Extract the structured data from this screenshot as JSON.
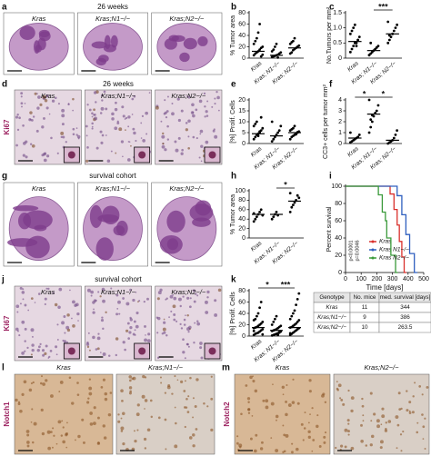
{
  "panels": [
    {
      "label": "a",
      "title": "26 weeks",
      "samples": [
        "Kras",
        "Kras;N1−/−",
        "Kras;N2−/−"
      ]
    },
    {
      "label": "d",
      "title": "26 weeks",
      "stain": "Ki67",
      "samples": [
        "Kras",
        "Kras;N1−/−",
        "Kras;N2−/−"
      ]
    },
    {
      "label": "g",
      "title": "survival cohort",
      "samples": [
        "Kras",
        "Kras;N1−/−",
        "Kras;N2−/−"
      ]
    },
    {
      "label": "j",
      "title": "survival cohort",
      "stain": "Ki67",
      "samples": [
        "Kras",
        "Kras;N1−/−",
        "Kras;N2−/−"
      ]
    },
    {
      "label": "l",
      "stain": "Notch1",
      "samples": [
        "Kras",
        "Kras;N1−/−"
      ]
    },
    {
      "label": "m",
      "stain": "Notch2",
      "samples": [
        "Kras",
        "Kras;N2−/−"
      ]
    }
  ],
  "chart_data": [
    {
      "type": "dotplot",
      "label": "b",
      "ylabel": "% Tumor area",
      "categories": [
        "Kras",
        "Kras; N1−/−",
        "Kras; N2−/−"
      ],
      "values": [
        [
          5,
          8,
          10,
          12,
          15,
          18,
          20,
          25,
          30,
          35,
          45,
          60,
          3,
          6
        ],
        [
          2,
          3,
          4,
          5,
          6,
          8,
          10,
          12,
          15,
          20,
          25,
          1
        ],
        [
          8,
          10,
          14,
          16,
          18,
          20,
          22,
          25,
          28,
          30,
          35
        ]
      ],
      "medians": [
        12,
        5,
        18
      ],
      "ylim": [
        0,
        80
      ],
      "yticks": [
        0,
        20,
        40,
        60,
        80
      ]
    },
    {
      "type": "dotplot",
      "label": "c",
      "ylabel": "No.Tumors per mm²",
      "categories": [
        "Kras",
        "Kras; N1−/−",
        "Kras; N2−/−"
      ],
      "values": [
        [
          0.2,
          0.3,
          0.4,
          0.5,
          0.5,
          0.6,
          0.7,
          0.8,
          0.9,
          1.0,
          1.1,
          0.4,
          0.6
        ],
        [
          0.1,
          0.15,
          0.2,
          0.25,
          0.3,
          0.35,
          0.4,
          0.1,
          0.5
        ],
        [
          0.5,
          0.6,
          0.7,
          0.8,
          0.9,
          1.0,
          1.1,
          1.2,
          0.75
        ]
      ],
      "medians": [
        0.55,
        0.25,
        0.8
      ],
      "ylim": [
        0,
        1.5
      ],
      "yticks": [
        0,
        0.5,
        {
          "value": 1,
          "label": "1.0"
        },
        1.5
      ],
      "annotations": [
        "***"
      ]
    },
    {
      "type": "dotplot",
      "label": "e",
      "ylabel": "[%] Prolif. Cells",
      "categories": [
        "Kras",
        "Kras; N1−/−",
        "Kras; N2−/−"
      ],
      "values": [
        [
          2,
          3,
          4,
          4.5,
          5,
          6,
          7,
          8,
          9,
          10,
          3.5,
          5.5,
          12
        ],
        [
          1,
          2,
          3,
          4,
          5,
          6,
          8,
          10
        ],
        [
          2,
          3,
          3.5,
          4,
          4.5,
          5,
          5.5,
          6,
          6.5,
          7,
          8,
          4.2,
          5.2
        ]
      ],
      "medians": [
        4.5,
        3.5,
        5
      ],
      "ylim": [
        0,
        20
      ],
      "yticks": [
        0,
        5,
        10,
        15,
        20
      ]
    },
    {
      "type": "dotplot",
      "label": "f",
      "ylabel": "CC3+ cells per tumor mm²",
      "categories": [
        "Kras",
        "Kras; N1−/−",
        "Kras; N2−/−"
      ],
      "values": [
        [
          0.1,
          0.2,
          0.3,
          0.4,
          0.5,
          0.6,
          0.8,
          1.0
        ],
        [
          1,
          1.5,
          2,
          2.5,
          2.8,
          3,
          3.5,
          4,
          2.2,
          2.6
        ],
        [
          0,
          0.1,
          0.2,
          0.3,
          0.5,
          0.8,
          1.2
        ]
      ],
      "medians": [
        0.5,
        2.7,
        0.3
      ],
      "ylim": [
        0,
        4
      ],
      "yticks": [
        0,
        1,
        2,
        3,
        4
      ],
      "annotations": [
        "*",
        "*"
      ]
    },
    {
      "type": "dotplot",
      "label": "h",
      "ylabel": "% Tumor area",
      "categories": [
        "Kras",
        "Kras; N1−/−",
        "Kras; N2−/−"
      ],
      "values": [
        [
          35,
          40,
          45,
          50,
          55,
          60,
          48,
          52
        ],
        [
          40,
          45,
          50,
          55,
          48
        ],
        [
          55,
          65,
          70,
          75,
          80,
          90,
          85,
          95
        ]
      ],
      "medians": [
        50,
        50,
        78
      ],
      "ylim": [
        0,
        100
      ],
      "yticks": [
        0,
        20,
        40,
        60,
        80,
        100
      ],
      "annotations": [
        "*"
      ]
    },
    {
      "type": "line",
      "label": "i",
      "ylabel": "Percent survival",
      "xlabel": "Time [days]",
      "series": [
        {
          "name": "Kras",
          "color": "#d9302c",
          "x": [
            0,
            285,
            285,
            310,
            310,
            330,
            330,
            344,
            344,
            360,
            360,
            375,
            375,
            390
          ],
          "values": [
            100,
            100,
            91,
            91,
            73,
            73,
            55,
            55,
            36,
            36,
            18,
            18,
            0,
            0
          ]
        },
        {
          "name": "Kras N1−/−",
          "color": "#2f5fbf",
          "x": [
            0,
            330,
            330,
            360,
            360,
            386,
            386,
            410,
            410,
            440,
            440,
            460
          ],
          "values": [
            100,
            100,
            89,
            89,
            67,
            67,
            44,
            44,
            22,
            22,
            0,
            0
          ]
        },
        {
          "name": "Kras N2−/−",
          "color": "#3a9a3a",
          "x": [
            0,
            210,
            210,
            235,
            235,
            255,
            255,
            263.5,
            263.5,
            290,
            290,
            320,
            320,
            335
          ],
          "values": [
            100,
            100,
            90,
            90,
            70,
            70,
            60,
            60,
            40,
            40,
            20,
            20,
            0,
            0
          ]
        }
      ],
      "xlim": [
        0,
        500
      ],
      "xticks": [
        0,
        100,
        200,
        300,
        400,
        500
      ],
      "ylim": [
        0,
        100
      ],
      "yticks": [
        0,
        20,
        40,
        60,
        80,
        100
      ],
      "annotations": [
        "p<0.0001",
        "p=0.0046"
      ]
    },
    {
      "type": "dotplot",
      "label": "k",
      "ylabel": "[%] Prolif. Cells",
      "categories": [
        "Kras",
        "Kras; N1−/−",
        "Kras; N2−/−"
      ],
      "values": [
        [
          2,
          4,
          5,
          6,
          8,
          10,
          12,
          14,
          15,
          16,
          18,
          20,
          22,
          25,
          28,
          30,
          35,
          40,
          50,
          60,
          3,
          9
        ],
        [
          1,
          2,
          3,
          4,
          5,
          6,
          8,
          9,
          10,
          11,
          12,
          14,
          16,
          18,
          20,
          25,
          30,
          35,
          2,
          7
        ],
        [
          2,
          4,
          6,
          8,
          10,
          12,
          14,
          15,
          16,
          18,
          20,
          22,
          25,
          28,
          30,
          35,
          40,
          45,
          55,
          65,
          75,
          5
        ]
      ],
      "medians": [
        15,
        10,
        15
      ],
      "ylim": [
        0,
        80
      ],
      "yticks": [
        0,
        20,
        40,
        60,
        80
      ],
      "annotations": [
        "*",
        "***"
      ]
    }
  ],
  "table": {
    "header": [
      "Genotype",
      "No. mice",
      "med. survival [days]"
    ],
    "rows": [
      [
        "Kras",
        11,
        344
      ],
      [
        "Kras;N1−/−",
        9,
        386
      ],
      [
        "Kras;N2−/−",
        10,
        263.5
      ]
    ]
  }
}
